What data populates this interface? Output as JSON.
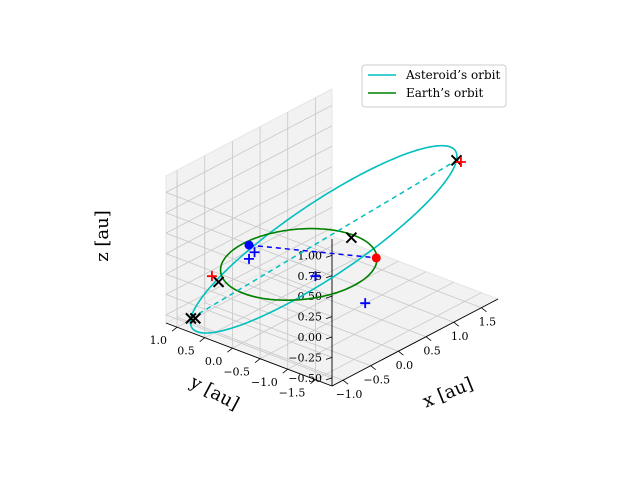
{
  "chart_data": {
    "type": "line",
    "projection": "3d",
    "title": "",
    "axes": {
      "x": {
        "label": "x [au]",
        "lim": [
          -1.2,
          1.8
        ],
        "ticks": [
          -1.0,
          -0.5,
          0.0,
          0.5,
          1.0,
          1.5
        ],
        "tick_labels": [
          "−1.0",
          "−0.5",
          "0.0",
          "0.5",
          "1.0",
          "1.5"
        ]
      },
      "y": {
        "label": "y [au]",
        "lim": [
          -1.8,
          1.2
        ],
        "ticks": [
          1.0,
          0.5,
          0.0,
          -0.5,
          -1.0,
          -1.5
        ],
        "tick_labels": [
          "1.0",
          "0.5",
          "0.0",
          "−0.5",
          "−1.0",
          "−1.5"
        ]
      },
      "z": {
        "label": "z [au]",
        "lim": [
          -0.6,
          1.2
        ],
        "ticks": [
          1.0,
          0.75,
          0.5,
          0.25,
          0.0,
          -0.25,
          -0.5
        ],
        "tick_labels": [
          "1.00",
          "0.75",
          "0.50",
          "0.25",
          "0.00",
          "−0.25",
          "−0.50"
        ]
      }
    },
    "grid": true,
    "legend_position": "upper right",
    "series": [
      {
        "name": "Asteroid’s orbit",
        "style": "solid",
        "color": "#00bfbf",
        "orbit": {
          "center": [
            0.2,
            -0.25,
            0.3
          ],
          "axis1": [
            1.2,
            -1.2,
            0.85
          ],
          "axis2": [
            -0.6,
            -0.4,
            -0.3
          ]
        }
      },
      {
        "name": "Earth’s orbit",
        "style": "solid",
        "color": "#008000",
        "orbit": {
          "center": [
            0.0,
            0.0,
            0.0
          ],
          "axis1": [
            1.0,
            0.0,
            0.0
          ],
          "axis2": [
            0.0,
            1.0,
            0.0
          ]
        }
      }
    ],
    "lines": [
      {
        "style": "dashed",
        "color": "#00bfbf",
        "points": [
          [
            -1.0,
            0.95,
            -0.55
          ],
          [
            1.4,
            -1.45,
            1.15
          ]
        ]
      },
      {
        "style": "dashed",
        "color": "#0000ff",
        "points": [
          [
            -0.4,
            0.5,
            0.25
          ],
          [
            0.8,
            -0.6,
            -0.05
          ]
        ]
      }
    ],
    "markers": [
      {
        "symbol": "circle",
        "color": "#0000ff",
        "point": [
          -0.4,
          0.5,
          0.25
        ]
      },
      {
        "symbol": "circle",
        "color": "#ff0000",
        "point": [
          0.8,
          -0.6,
          -0.05
        ]
      },
      {
        "symbol": "cross",
        "color": "#000000",
        "point": [
          -0.6,
          0.85,
          -0.22
        ]
      },
      {
        "symbol": "cross",
        "color": "#000000",
        "point": [
          0.9,
          -0.05,
          0.02
        ]
      },
      {
        "symbol": "cross",
        "color": "#000000",
        "point": [
          -1.0,
          0.95,
          -0.55
        ]
      },
      {
        "symbol": "cross",
        "color": "#000000",
        "point": [
          -0.95,
          0.92,
          -0.56
        ]
      },
      {
        "symbol": "cross",
        "color": "#000000",
        "point": [
          1.4,
          -1.45,
          1.15
        ]
      },
      {
        "symbol": "plus",
        "color": "#ff0000",
        "point": [
          -0.65,
          0.92,
          -0.15
        ]
      },
      {
        "symbol": "plus",
        "color": "#ff0000",
        "point": [
          1.45,
          -1.48,
          1.12
        ]
      },
      {
        "symbol": "plus",
        "color": "#0000ff",
        "point": [
          -0.42,
          0.38,
          0.2
        ]
      },
      {
        "symbol": "plus",
        "color": "#0000ff",
        "point": [
          -0.3,
          0.6,
          0.02
        ]
      },
      {
        "symbol": "plus",
        "color": "#0000ff",
        "point": [
          0.25,
          -0.05,
          -0.22
        ]
      },
      {
        "symbol": "plus",
        "color": "#0000ff",
        "point": [
          0.3,
          -0.9,
          -0.35
        ]
      }
    ]
  }
}
